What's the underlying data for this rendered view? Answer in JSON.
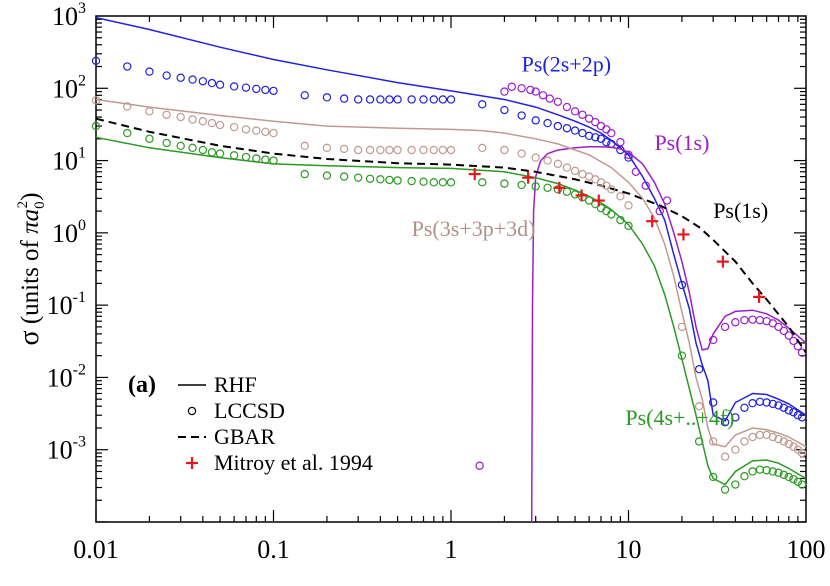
{
  "chart_data": {
    "type": "line",
    "title": "",
    "xlabel": "",
    "ylabel": "σ (units of πa₀²)",
    "ylabel_parts": {
      "sigma": "σ",
      "text": " (units of ",
      "pi_a": "πa",
      "sub": "0",
      "sup": "2",
      "close": ")"
    },
    "xscale": "log",
    "yscale": "log",
    "xlim": [
      0.01,
      100
    ],
    "ylim": [
      0.0001,
      1000
    ],
    "x_ticks": [
      {
        "value": 0.01,
        "label": "0.01"
      },
      {
        "value": 0.1,
        "label": "0.1"
      },
      {
        "value": 1,
        "label": "1"
      },
      {
        "value": 10,
        "label": "10"
      },
      {
        "value": 100,
        "label": "100"
      }
    ],
    "y_ticks": [
      {
        "value": 1000,
        "base": "10",
        "exp": "3"
      },
      {
        "value": 100,
        "base": "10",
        "exp": "2"
      },
      {
        "value": 10,
        "base": "10",
        "exp": "1"
      },
      {
        "value": 1,
        "base": "10",
        "exp": "0"
      },
      {
        "value": 0.1,
        "base": "10",
        "exp": "-1"
      },
      {
        "value": 0.01,
        "base": "10",
        "exp": "-2"
      },
      {
        "value": 0.001,
        "base": "10",
        "exp": "-3"
      }
    ],
    "panel_label": "(a)",
    "legend_position": "bottom-left",
    "legend": [
      {
        "label": "RHF",
        "kind": "solid",
        "color": "#000000"
      },
      {
        "label": "LCCSD",
        "kind": "circle",
        "color": "#000000"
      },
      {
        "label": "GBAR",
        "kind": "dashed",
        "color": "#000000"
      },
      {
        "label": "Mitroy et al. 1994",
        "kind": "plus",
        "color": "#e8161b"
      }
    ],
    "annotations": [
      {
        "text": "Ps(2s+2p)",
        "color": "#2222dd",
        "x": 2.5,
        "y": 170
      },
      {
        "text": "Ps(1s)",
        "color": "#9a20c8",
        "x": 14,
        "y": 14
      },
      {
        "text": "Ps(1s)",
        "color": "#000000",
        "x": 30,
        "y": 1.6
      },
      {
        "text": "Ps(3s+3p+3d)",
        "color": "#b09088",
        "x": 0.6,
        "y": 0.9
      },
      {
        "text": "Ps(4s+..+4f)",
        "color": "#2a9a22",
        "x": 9.6,
        "y": 0.0022
      }
    ],
    "series": [
      {
        "name": "Ps(2s+2p) RHF",
        "kind": "line",
        "color": "#2222dd",
        "x": [
          0.01,
          0.02,
          0.05,
          0.1,
          0.2,
          0.5,
          1,
          2,
          3,
          4,
          5,
          6,
          7,
          8,
          10,
          12,
          14,
          16,
          18,
          20,
          22,
          24,
          26,
          28,
          30,
          35,
          40,
          50,
          60,
          70,
          80,
          100
        ],
        "y": [
          950,
          650,
          370,
          250,
          180,
          120,
          92,
          70,
          55,
          43,
          35,
          29,
          24,
          19,
          12,
          6,
          3,
          1.5,
          0.5,
          0.2,
          0.09,
          0.03,
          0.015,
          0.009,
          0.003,
          0.0025,
          0.0045,
          0.006,
          0.0058,
          0.005,
          0.0043,
          0.003
        ]
      },
      {
        "name": "Ps(2s+2p) LCCSD",
        "kind": "circles",
        "color": "#2222dd",
        "x": [
          0.01,
          0.015,
          0.02,
          0.025,
          0.03,
          0.035,
          0.04,
          0.045,
          0.05,
          0.06,
          0.07,
          0.08,
          0.09,
          0.1,
          0.15,
          0.2,
          0.25,
          0.3,
          0.35,
          0.4,
          0.45,
          0.5,
          0.6,
          0.7,
          0.8,
          0.9,
          1.0,
          1.5,
          2.0,
          2.5,
          3.0,
          3.5,
          4.0,
          4.5,
          5.0,
          5.5,
          6.0,
          6.5,
          7.0,
          7.5,
          8.0,
          9.0,
          10.0,
          20,
          25,
          30,
          35,
          40,
          45,
          50,
          55,
          60,
          65,
          70,
          75,
          80,
          85,
          90,
          95
        ],
        "y": [
          240,
          200,
          170,
          150,
          140,
          132,
          125,
          118,
          112,
          106,
          102,
          98,
          95,
          92,
          80,
          75,
          72,
          70,
          70,
          70,
          70,
          70,
          70,
          70,
          70,
          70,
          70,
          60,
          50,
          42,
          36,
          33,
          30,
          28,
          26,
          24,
          22,
          21,
          20,
          18,
          17,
          14,
          11,
          0.19,
          0.013,
          0.0045,
          0.0024,
          0.0028,
          0.0038,
          0.0044,
          0.0046,
          0.0045,
          0.0043,
          0.0041,
          0.0038,
          0.0035,
          0.0033,
          0.003,
          0.0028
        ]
      },
      {
        "name": "Ps(1s) RHF",
        "kind": "line",
        "color": "#9a20c8",
        "x": [
          2.85,
          2.88,
          2.92,
          3.0,
          3.2,
          3.5,
          4.0,
          5.0,
          6.0,
          7.0,
          8.0,
          9.0,
          10,
          12,
          14,
          16,
          18,
          20,
          22,
          24,
          26,
          28,
          30,
          35,
          40,
          50,
          60,
          70,
          80,
          100
        ],
        "y": [
          0.0001,
          0.1,
          2.0,
          6.0,
          10,
          12.5,
          14,
          15,
          15.5,
          15.5,
          15.2,
          14.5,
          13,
          9,
          5,
          2.5,
          1.0,
          0.4,
          0.15,
          0.05,
          0.024,
          0.025,
          0.04,
          0.07,
          0.082,
          0.085,
          0.076,
          0.062,
          0.048,
          0.03
        ]
      },
      {
        "name": "Ps(1s) LCCSD",
        "kind": "circles",
        "color": "#9a20c8",
        "x": [
          2.0,
          2.2,
          2.5,
          2.8,
          3.0,
          3.3,
          3.6,
          4.0,
          4.5,
          5.0,
          5.5,
          6.0,
          6.5,
          7.0,
          7.5,
          8.0,
          9.0,
          10.0,
          11.0,
          12.5,
          15.0,
          16.5,
          30,
          35,
          40,
          45,
          50,
          55,
          60,
          65,
          70,
          75,
          80,
          85,
          90,
          95,
          1.45
        ],
        "y": [
          90,
          105,
          100,
          95,
          90,
          80,
          72,
          65,
          55,
          48,
          43,
          38,
          34,
          30,
          27,
          24,
          18,
          12,
          7,
          4.5,
          2.0,
          2.8,
          0.033,
          0.05,
          0.058,
          0.062,
          0.063,
          0.062,
          0.06,
          0.056,
          0.05,
          0.044,
          0.038,
          0.032,
          0.027,
          0.022,
          0.0006
        ]
      },
      {
        "name": "Ps(1s) GBAR",
        "kind": "dashed",
        "color": "#000000",
        "x": [
          0.01,
          0.02,
          0.05,
          0.1,
          0.2,
          0.5,
          1,
          2,
          3,
          5,
          7,
          10,
          15,
          20,
          25,
          30,
          40,
          50,
          60,
          70,
          80,
          100
        ],
        "y": [
          38,
          25,
          16,
          12.5,
          10.5,
          9.2,
          8.8,
          8.0,
          7.0,
          5.5,
          4.5,
          3.5,
          2.4,
          1.7,
          1.2,
          0.8,
          0.4,
          0.2,
          0.12,
          0.075,
          0.05,
          0.022
        ]
      },
      {
        "name": "Ps(3s+3p+3d) RHF",
        "kind": "line",
        "color": "#c09a92",
        "x": [
          0.01,
          0.02,
          0.05,
          0.1,
          0.2,
          0.5,
          1,
          1.5,
          2,
          3,
          4,
          5,
          6,
          8,
          10,
          12,
          14,
          16,
          18,
          20,
          22,
          24,
          26,
          28,
          30,
          35,
          40,
          50,
          60,
          70,
          80,
          100
        ],
        "y": [
          70,
          55,
          42,
          35,
          30,
          28,
          27,
          26,
          24,
          20,
          17,
          14,
          12,
          8,
          5,
          3,
          1.6,
          0.7,
          0.25,
          0.08,
          0.03,
          0.01,
          0.005,
          0.002,
          0.0012,
          0.0011,
          0.0016,
          0.002,
          0.0019,
          0.0017,
          0.0015,
          0.0011
        ]
      },
      {
        "name": "Ps(3s+3p+3d) LCCSD",
        "kind": "circles",
        "color": "#c09a92",
        "x": [
          0.01,
          0.015,
          0.02,
          0.025,
          0.03,
          0.035,
          0.04,
          0.045,
          0.05,
          0.06,
          0.07,
          0.08,
          0.09,
          0.1,
          0.15,
          0.2,
          0.25,
          0.3,
          0.35,
          0.4,
          0.45,
          0.5,
          0.6,
          0.7,
          0.8,
          0.9,
          1.0,
          1.5,
          2.0,
          2.5,
          3.0,
          3.5,
          4.0,
          4.5,
          5.0,
          5.5,
          6.0,
          6.5,
          7.0,
          7.5,
          8.0,
          9.0,
          10.0,
          20,
          25,
          30,
          35,
          40,
          45,
          50,
          55,
          60,
          65,
          70,
          75,
          80,
          85,
          90,
          95
        ],
        "y": [
          68,
          56,
          48,
          43,
          40,
          37,
          35,
          33,
          31,
          29,
          27,
          26,
          25,
          24,
          16,
          15,
          14.5,
          14,
          14,
          14,
          14,
          14,
          14,
          14,
          14,
          14,
          14,
          15,
          14,
          12.5,
          11,
          10,
          9,
          8,
          7.2,
          6.5,
          6.0,
          5.5,
          5.0,
          4.5,
          4.0,
          3.2,
          2.4,
          0.05,
          0.004,
          0.0013,
          0.0008,
          0.001,
          0.0013,
          0.0015,
          0.0016,
          0.0016,
          0.0015,
          0.0014,
          0.0013,
          0.0012,
          0.0011,
          0.001,
          0.0009
        ]
      },
      {
        "name": "Ps(4s+..+4f) RHF",
        "kind": "line",
        "color": "#2a9a22",
        "x": [
          0.01,
          0.02,
          0.05,
          0.1,
          0.2,
          0.5,
          1,
          2,
          3,
          4,
          5,
          6,
          7,
          8,
          10,
          12,
          14,
          16,
          18,
          20,
          22,
          24,
          26,
          28,
          30,
          35,
          40,
          50,
          60,
          70,
          80,
          100
        ],
        "y": [
          21,
          15,
          11,
          9,
          8.5,
          8.0,
          7.8,
          7.0,
          5.8,
          4.8,
          3.9,
          3.2,
          2.6,
          2.1,
          1.3,
          0.7,
          0.35,
          0.14,
          0.05,
          0.018,
          0.007,
          0.003,
          0.0013,
          0.0006,
          0.0004,
          0.00033,
          0.0005,
          0.0007,
          0.00072,
          0.00065,
          0.00055,
          0.0004
        ]
      },
      {
        "name": "Ps(4s+..+4f) LCCSD",
        "kind": "circles",
        "color": "#2a9a22",
        "x": [
          0.01,
          0.015,
          0.02,
          0.025,
          0.03,
          0.035,
          0.04,
          0.045,
          0.05,
          0.06,
          0.07,
          0.08,
          0.09,
          0.1,
          0.15,
          0.2,
          0.25,
          0.3,
          0.35,
          0.4,
          0.45,
          0.5,
          0.6,
          0.7,
          0.8,
          0.9,
          1.0,
          1.5,
          2.0,
          2.5,
          3.0,
          3.5,
          4.0,
          4.5,
          5.0,
          5.5,
          6.0,
          6.5,
          7.0,
          7.5,
          8.0,
          9.0,
          10.0,
          20,
          25,
          30,
          35,
          40,
          45,
          50,
          55,
          60,
          65,
          70,
          75,
          80,
          85,
          90,
          95
        ],
        "y": [
          30,
          24,
          20,
          17.5,
          16,
          15,
          14,
          13,
          12.5,
          11.8,
          11.2,
          10.7,
          10.3,
          10,
          6.5,
          6.2,
          6.0,
          5.8,
          5.6,
          5.5,
          5.4,
          5.3,
          5.2,
          5.1,
          5.0,
          5.0,
          5.0,
          5.0,
          4.8,
          4.6,
          4.4,
          4.2,
          4.0,
          3.7,
          3.4,
          3.1,
          2.8,
          2.5,
          2.2,
          2.0,
          1.8,
          1.5,
          1.25,
          0.02,
          0.0013,
          0.00042,
          0.00028,
          0.00033,
          0.00043,
          0.0005,
          0.00053,
          0.00052,
          0.0005,
          0.00048,
          0.00045,
          0.00042,
          0.00039,
          0.00036,
          0.00033
        ]
      },
      {
        "name": "Mitroy et al. 1994",
        "kind": "plus",
        "color": "#e8161b",
        "x": [
          1.36,
          2.72,
          4.08,
          5.44,
          6.8,
          13.6,
          20.4,
          34.0,
          54.4
        ],
        "y": [
          6.5,
          5.8,
          4.2,
          3.3,
          2.8,
          1.45,
          0.95,
          0.4,
          0.13
        ]
      }
    ]
  }
}
